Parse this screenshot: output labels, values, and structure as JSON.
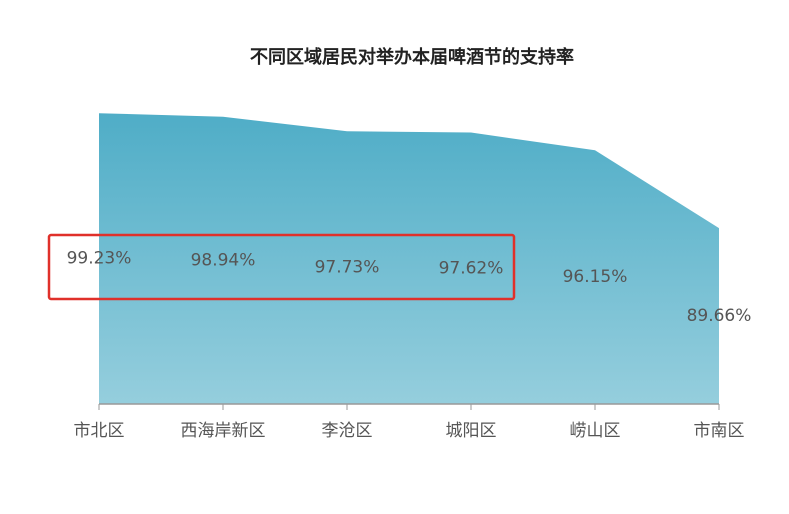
{
  "chart_data": {
    "type": "area",
    "title": "不同区域居民对举办本届啤酒节的支持率",
    "categories": [
      "市北区",
      "西海岸新区",
      "李沧区",
      "城阳区",
      "崂山区",
      "市南区"
    ],
    "values": [
      99.23,
      98.94,
      97.73,
      97.62,
      96.15,
      89.66
    ],
    "value_labels": [
      "99.23%",
      "98.94%",
      "97.73%",
      "97.62%",
      "96.15%",
      "89.66%"
    ],
    "color": "#4fadc7",
    "ylim": [
      75,
      100
    ]
  }
}
